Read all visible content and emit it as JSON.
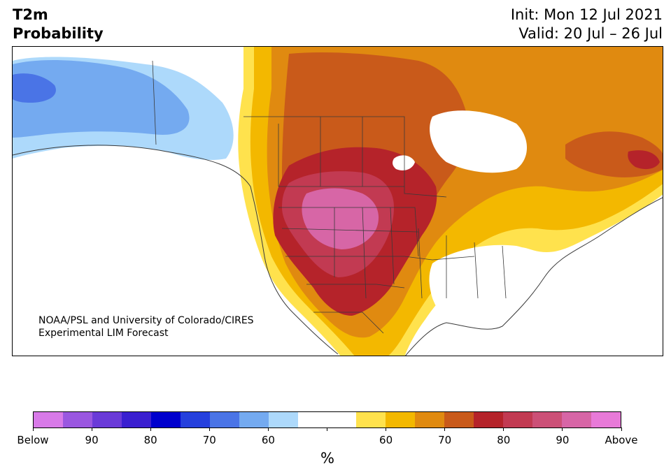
{
  "header": {
    "title_line1": "T2m",
    "title_line2": "Probability",
    "init": "Init: Mon 12 Jul 2021",
    "valid": "Valid: 20 Jul – 26 Jul"
  },
  "credit": {
    "line1": "NOAA/PSL and University of Colorado/CIRES",
    "line2": "Experimental LIM Forecast"
  },
  "colorbar": {
    "unit": "%",
    "colors": [
      "#d87ae8",
      "#9a57e0",
      "#6a3ad8",
      "#3a1fd0",
      "#0000cd",
      "#2540dd",
      "#4a74e6",
      "#74aaf0",
      "#add9fb",
      "#ffffff",
      "#ffffff",
      "#ffe24d",
      "#f3b800",
      "#e08a10",
      "#c95a1a",
      "#b5232a",
      "#c23a52",
      "#cc5077",
      "#d766a6",
      "#e87ad8"
    ],
    "tick_labels": [
      "Below",
      "90",
      "80",
      "70",
      "60",
      "",
      "60",
      "70",
      "80",
      "90",
      "Above"
    ]
  },
  "map": {
    "colors": {
      "below60": "#add9fb",
      "below70": "#74aaf0",
      "below80": "#4a74e6",
      "neutral": "#ffffff",
      "above55": "#ffe24d",
      "above60": "#f3b800",
      "above65": "#e08a10",
      "above70": "#c95a1a",
      "above75": "#b5232a",
      "above80": "#c23a52",
      "above90": "#d766a6",
      "border": "#3a3a3a"
    }
  }
}
